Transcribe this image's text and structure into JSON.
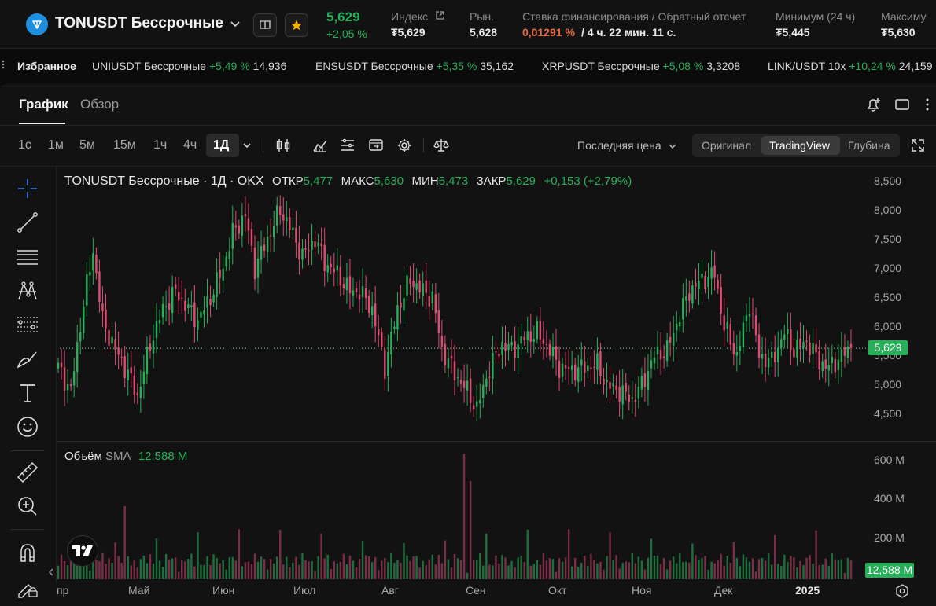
{
  "header": {
    "symbol": "TONUSDT Бессрочные",
    "last_price": "5,629",
    "change": "+2,05 %",
    "index_label": "Индекс",
    "index_value": "₮5,629",
    "market_label": "Рын.",
    "market_value": "5,628",
    "funding_label": "Ставка финансирования / Обратный отсчет",
    "funding_rate": "0,01291 %",
    "funding_countdown": "/ 4 ч. 22 мин. 11 с.",
    "low_label": "Минимум (24 ч)",
    "low_value": "₮5,445",
    "high_label": "Максиму",
    "high_value": "₮5,630"
  },
  "tickers": {
    "favorites_label": "Избранное",
    "items": [
      {
        "name": "UNIUSDT Бессрочные",
        "change": "+5,49 %",
        "price": "14,936"
      },
      {
        "name": "ENSUSDT Бессрочные",
        "change": "+5,35 %",
        "price": "35,162"
      },
      {
        "name": "XRPUSDT Бессрочные",
        "change": "+5,08 %",
        "price": "3,3208"
      },
      {
        "name": "LINK/USDT 10x",
        "change": "+10,24 %",
        "price": "24,159"
      }
    ]
  },
  "tabs": {
    "chart": "График",
    "overview": "Обзор"
  },
  "timeframes": [
    "1с",
    "1м",
    "5м",
    "15м",
    "1ч",
    "4ч",
    "1Д"
  ],
  "price_type": "Последняя цена",
  "view_modes": {
    "original": "Оригинал",
    "tradingview": "TradingView",
    "depth": "Глубина"
  },
  "legend": {
    "title": "TONUSDT Бессрочные · 1Д · OKX",
    "open_label": "ОТКР",
    "open": "5,477",
    "high_label": "МАКС",
    "high": "5,630",
    "low_label": "МИН",
    "low": "5,473",
    "close_label": "ЗАКР",
    "close": "5,629",
    "change": "+0,153 (+2,79%)"
  },
  "volume_legend": {
    "label": "Объём",
    "sma": "SMA",
    "value": "12,588 M"
  },
  "price_tag": "5,629",
  "volume_tag": "12,588 M",
  "y_axis": [
    "8,500",
    "8,000",
    "7,500",
    "7,000",
    "6,500",
    "6,000",
    "5,500",
    "5,000",
    "4,500"
  ],
  "volume_axis": [
    "600 M",
    "400 M",
    "200 M"
  ],
  "x_axis": [
    "пр",
    "Май",
    "Июн",
    "Июл",
    "Авг",
    "Сен",
    "Окт",
    "Ноя",
    "Дек",
    "2025"
  ],
  "colors": {
    "up": "#27b05a",
    "down": "#e04a73",
    "accent_orange": "#e56b3c",
    "bg": "#121212"
  },
  "chart_data": {
    "type": "candlestick",
    "title": "TONUSDT Бессрочные · 1Д · OKX",
    "ylim": [
      4.3,
      8.6
    ],
    "x_range": [
      "пр",
      "2025"
    ],
    "grid": false,
    "last_price": 5.629,
    "anchors": [
      [
        0,
        5.3
      ],
      [
        4,
        4.9
      ],
      [
        8,
        6.4
      ],
      [
        11,
        7.3
      ],
      [
        14,
        6.1
      ],
      [
        18,
        5.6
      ],
      [
        22,
        5.2
      ],
      [
        25,
        4.8
      ],
      [
        29,
        5.7
      ],
      [
        33,
        6.3
      ],
      [
        37,
        6.6
      ],
      [
        41,
        6.3
      ],
      [
        44,
        6.1
      ],
      [
        48,
        6.5
      ],
      [
        52,
        7.0
      ],
      [
        55,
        7.6
      ],
      [
        59,
        7.9
      ],
      [
        62,
        7.0
      ],
      [
        66,
        7.5
      ],
      [
        70,
        8.0
      ],
      [
        73,
        7.7
      ],
      [
        77,
        7.2
      ],
      [
        81,
        7.5
      ],
      [
        84,
        7.1
      ],
      [
        88,
        6.9
      ],
      [
        92,
        6.6
      ],
      [
        95,
        6.6
      ],
      [
        99,
        6.3
      ],
      [
        103,
        5.3
      ],
      [
        107,
        6.3
      ],
      [
        111,
        6.8
      ],
      [
        115,
        6.6
      ],
      [
        118,
        6.5
      ],
      [
        121,
        5.6
      ],
      [
        125,
        5.2
      ],
      [
        129,
        4.9
      ],
      [
        132,
        4.6
      ],
      [
        136,
        5.3
      ],
      [
        140,
        5.7
      ],
      [
        143,
        5.6
      ],
      [
        147,
        5.8
      ],
      [
        151,
        5.9
      ],
      [
        155,
        5.6
      ],
      [
        158,
        5.3
      ],
      [
        162,
        5.25
      ],
      [
        166,
        5.3
      ],
      [
        170,
        5.35
      ],
      [
        173,
        5.0
      ],
      [
        177,
        4.9
      ],
      [
        181,
        4.75
      ],
      [
        184,
        5.0
      ],
      [
        188,
        5.5
      ],
      [
        192,
        5.6
      ],
      [
        196,
        6.2
      ],
      [
        199,
        6.6
      ],
      [
        203,
        6.8
      ],
      [
        207,
        6.9
      ],
      [
        210,
        6.0
      ],
      [
        214,
        5.5
      ],
      [
        218,
        6.4
      ],
      [
        221,
        5.5
      ],
      [
        225,
        5.4
      ],
      [
        229,
        5.9
      ],
      [
        232,
        5.6
      ],
      [
        236,
        5.75
      ],
      [
        240,
        5.4
      ],
      [
        243,
        5.3
      ],
      [
        247,
        5.5
      ],
      [
        250,
        5.629
      ]
    ]
  }
}
